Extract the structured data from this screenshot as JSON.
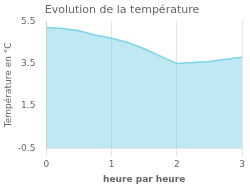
{
  "chart_data": {
    "type": "area",
    "title": "Evolution de la température",
    "x_label": "heure par heure",
    "y_label": "Température en °C",
    "x": [
      0,
      0.25,
      0.5,
      0.75,
      1.0,
      1.25,
      1.5,
      1.75,
      2.0,
      2.25,
      2.5,
      2.75,
      3.0
    ],
    "values": [
      5.2,
      5.15,
      5.05,
      4.85,
      4.7,
      4.5,
      4.2,
      3.85,
      3.5,
      3.55,
      3.6,
      3.7,
      3.8
    ],
    "color": "#7dd4e8",
    "xlim": [
      0,
      3
    ],
    "xticks": [
      0,
      1,
      2,
      3
    ],
    "ylim": [
      -0.5,
      5.5
    ],
    "yticks": [
      -0.5,
      1.5,
      3.5,
      5.5
    ],
    "grid": "x"
  }
}
